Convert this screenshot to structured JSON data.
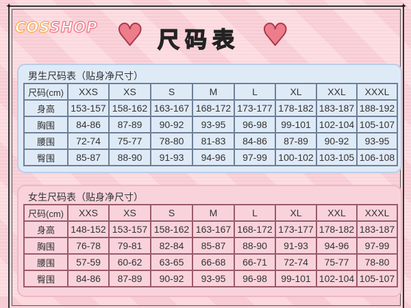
{
  "brand": {
    "logo_part1": "COS",
    "logo_part2": "SHOP"
  },
  "header": {
    "title": "尺码表"
  },
  "colors": {
    "blue_panel": "#dfeaf7",
    "pink_panel": "#f9d3dc",
    "heart": "#ee7d8c"
  },
  "men": {
    "title": "男生尺码表（贴身净尺寸）",
    "headers": [
      "尺码(cm)",
      "XXS",
      "XS",
      "S",
      "M",
      "L",
      "XL",
      "XXL",
      "XXXL"
    ],
    "rows": [
      [
        "身高",
        "153-157",
        "158-162",
        "163-167",
        "168-172",
        "173-177",
        "178-182",
        "183-187",
        "188-192"
      ],
      [
        "胸围",
        "84-86",
        "87-89",
        "90-92",
        "93-95",
        "96-98",
        "99-101",
        "102-104",
        "105-107"
      ],
      [
        "腰围",
        "72-74",
        "75-77",
        "78-80",
        "81-83",
        "84-86",
        "87-89",
        "90-92",
        "93-95"
      ],
      [
        "臀围",
        "85-87",
        "88-90",
        "91-93",
        "94-96",
        "97-99",
        "100-102",
        "103-105",
        "106-108"
      ]
    ]
  },
  "women": {
    "title": "女生尺码表（贴身净尺寸）",
    "headers": [
      "尺码(cm)",
      "XXS",
      "XS",
      "S",
      "M",
      "L",
      "XL",
      "XXL",
      "XXXL"
    ],
    "rows": [
      [
        "身高",
        "148-152",
        "153-157",
        "158-162",
        "163-167",
        "168-172",
        "173-177",
        "178-182",
        "183-187"
      ],
      [
        "胸围",
        "76-78",
        "79-81",
        "82-84",
        "85-87",
        "88-90",
        "91-93",
        "94-96",
        "97-99"
      ],
      [
        "腰围",
        "57-59",
        "60-62",
        "63-65",
        "66-68",
        "66-71",
        "72-74",
        "75-77",
        "78-80"
      ],
      [
        "臀围",
        "84-86",
        "87-89",
        "90-92",
        "93-95",
        "96-98",
        "99-101",
        "102-104",
        "105-107"
      ]
    ]
  }
}
